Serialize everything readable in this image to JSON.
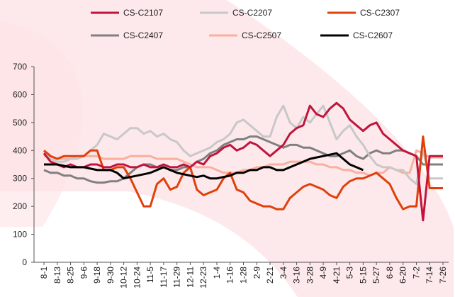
{
  "chart_data": {
    "type": "line",
    "categories": [
      "8-1",
      null,
      "8-13",
      null,
      "8-25",
      null,
      "9-6",
      null,
      "9-18",
      null,
      "9-30",
      null,
      "10-12",
      null,
      "10-24",
      null,
      "11-5",
      null,
      "11-17",
      null,
      "11-29",
      null,
      "12-11",
      null,
      "12-23",
      null,
      "1-4",
      null,
      "1-16",
      null,
      "1-28",
      null,
      "2-9",
      null,
      "2-21",
      null,
      "3-4",
      null,
      "3-16",
      null,
      "3-28",
      null,
      "4-9",
      null,
      "4-21",
      null,
      "5-3",
      null,
      "5-15",
      null,
      "5-27",
      null,
      "6-8",
      null,
      "6-20",
      null,
      "7-2",
      null,
      "7-14",
      null,
      "7-26"
    ],
    "series": [
      {
        "name": "CS-C2107",
        "color": "#c0143c",
        "values": [
          390,
          360,
          350,
          340,
          350,
          340,
          340,
          350,
          350,
          340,
          340,
          350,
          350,
          340,
          340,
          350,
          340,
          340,
          350,
          340,
          340,
          350,
          340,
          360,
          350,
          380,
          390,
          410,
          420,
          400,
          410,
          430,
          420,
          400,
          380,
          400,
          420,
          460,
          480,
          490,
          560,
          530,
          520,
          550,
          570,
          550,
          510,
          490,
          470,
          490,
          500,
          460,
          440,
          420,
          400,
          390,
          380,
          150,
          380,
          380,
          380
        ]
      },
      {
        "name": "CS-C2207",
        "color": "#c8c8c8",
        "values": [
          390,
          370,
          360,
          360,
          370,
          370,
          380,
          400,
          420,
          460,
          450,
          440,
          460,
          480,
          480,
          460,
          470,
          450,
          460,
          440,
          430,
          400,
          380,
          390,
          400,
          410,
          430,
          440,
          460,
          500,
          510,
          490,
          470,
          450,
          450,
          520,
          560,
          500,
          480,
          520,
          500,
          530,
          560,
          500,
          440,
          470,
          490,
          450,
          420,
          380,
          350,
          340,
          340,
          330,
          330,
          300,
          280,
          400,
          300,
          300,
          300
        ]
      },
      {
        "name": "CS-C2307",
        "color": "#e0400a",
        "values": [
          400,
          380,
          370,
          380,
          380,
          380,
          380,
          400,
          400,
          330,
          330,
          340,
          340,
          300,
          250,
          200,
          200,
          280,
          300,
          260,
          270,
          320,
          340,
          260,
          240,
          250,
          260,
          300,
          320,
          260,
          250,
          220,
          210,
          200,
          200,
          190,
          190,
          230,
          250,
          270,
          280,
          270,
          260,
          240,
          230,
          270,
          290,
          300,
          300,
          310,
          320,
          300,
          280,
          230,
          190,
          200,
          200,
          450,
          265,
          265,
          265
        ]
      },
      {
        "name": "CS-C2407",
        "color": "#808080",
        "values": [
          330,
          320,
          320,
          310,
          310,
          300,
          300,
          290,
          285,
          285,
          290,
          290,
          300,
          320,
          340,
          350,
          350,
          340,
          340,
          330,
          330,
          340,
          340,
          360,
          370,
          390,
          400,
          420,
          430,
          440,
          440,
          450,
          450,
          440,
          430,
          420,
          410,
          420,
          420,
          410,
          410,
          400,
          390,
          380,
          380,
          390,
          400,
          380,
          370,
          390,
          400,
          390,
          390,
          400,
          400,
          390,
          380,
          350,
          350,
          350,
          350
        ]
      },
      {
        "name": "CS-C2507",
        "color": "#f8b0a0",
        "values": [
          380,
          380,
          370,
          370,
          370,
          380,
          380,
          380,
          380,
          370,
          370,
          370,
          370,
          380,
          380,
          380,
          380,
          370,
          370,
          370,
          370,
          360,
          350,
          340,
          340,
          340,
          330,
          320,
          320,
          320,
          330,
          330,
          340,
          340,
          350,
          350,
          350,
          360,
          360,
          360,
          360,
          350,
          350,
          340,
          340,
          330,
          330,
          320,
          320,
          310,
          320,
          320,
          340,
          330,
          320,
          320,
          400,
          390,
          375,
          375,
          375
        ]
      },
      {
        "name": "CS-C2607",
        "color": "#000000",
        "values": [
          350,
          350,
          350,
          345,
          340,
          340,
          340,
          335,
          330,
          330,
          330,
          320,
          300,
          305,
          310,
          315,
          320,
          330,
          340,
          330,
          320,
          315,
          310,
          305,
          310,
          300,
          300,
          305,
          310,
          320,
          320,
          330,
          330,
          340,
          340,
          330,
          330,
          340,
          350,
          360,
          370,
          375,
          380,
          385,
          390,
          370,
          350,
          340,
          330,
          null,
          null,
          null,
          null,
          null,
          null,
          null,
          null,
          null,
          null,
          null,
          null
        ]
      }
    ],
    "ylim": [
      0,
      700
    ],
    "yticks": [
      0,
      100,
      200,
      300,
      400,
      500,
      600,
      700
    ]
  }
}
